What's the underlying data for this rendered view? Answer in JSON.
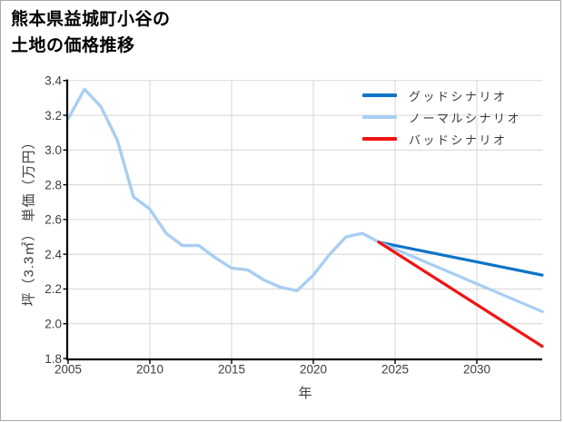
{
  "frame": {
    "background": "#ffffff",
    "border_color": "#a9a9a9"
  },
  "chart_data": {
    "type": "line",
    "title_lines": [
      "熊本県益城町小谷の",
      "土地の価格推移"
    ],
    "xlabel": "年",
    "ylabel": "坪（3.3㎡） 単価（万円）",
    "xlim": [
      2005,
      2034
    ],
    "ylim": [
      1.8,
      3.4
    ],
    "xticks": [
      2005,
      2010,
      2015,
      2020,
      2025,
      2030
    ],
    "yticks": [
      1.8,
      2.0,
      2.2,
      2.4,
      2.6,
      2.8,
      3.0,
      3.2,
      3.4
    ],
    "grid": true,
    "gridline_color": "#d9d9d9",
    "axis_color": "#000000",
    "tick_label_color": "#3d3d3d",
    "legend_position": "upper right",
    "history": {
      "color": "#a8cef2",
      "x": [
        2005,
        2006,
        2007,
        2008,
        2009,
        2010,
        2011,
        2012,
        2013,
        2014,
        2015,
        2016,
        2017,
        2018,
        2019,
        2020,
        2021,
        2022,
        2023,
        2024
      ],
      "y": [
        3.18,
        3.35,
        3.25,
        3.06,
        2.73,
        2.66,
        2.52,
        2.45,
        2.45,
        2.38,
        2.32,
        2.31,
        2.25,
        2.21,
        2.19,
        2.28,
        2.4,
        2.5,
        2.52,
        2.47
      ]
    },
    "series": [
      {
        "name": "グッドシナリオ",
        "color": "#0f74c8",
        "x": [
          2024,
          2034
        ],
        "y": [
          2.47,
          2.28
        ]
      },
      {
        "name": "ノーマルシナリオ",
        "color": "#a8cef2",
        "x": [
          2024,
          2034
        ],
        "y": [
          2.47,
          2.07
        ]
      },
      {
        "name": "バッドシナリオ",
        "color": "#f01414",
        "x": [
          2024,
          2034
        ],
        "y": [
          2.47,
          1.87
        ]
      }
    ]
  }
}
